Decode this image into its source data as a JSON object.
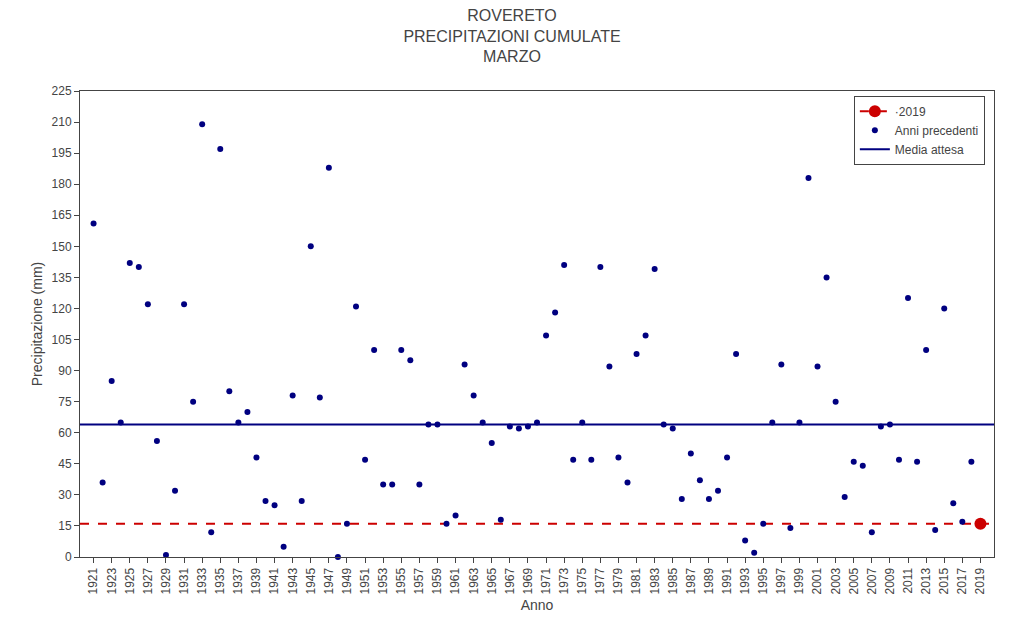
{
  "chart_data": {
    "type": "scatter",
    "title": "ROVERETO\nPRECIPITAZIONI CUMULATE\nMARZO",
    "xlabel": "Anno",
    "ylabel": "Precipitazione (mm)",
    "xlim": [
      1919.5,
      2020.5
    ],
    "xticks": [
      1921,
      1923,
      1925,
      1927,
      1929,
      1931,
      1933,
      1935,
      1937,
      1939,
      1941,
      1943,
      1945,
      1947,
      1949,
      1951,
      1953,
      1955,
      1957,
      1959,
      1961,
      1963,
      1965,
      1967,
      1969,
      1971,
      1973,
      1975,
      1977,
      1979,
      1981,
      1983,
      1985,
      1987,
      1989,
      1991,
      1993,
      1995,
      1997,
      1999,
      2001,
      2003,
      2005,
      2007,
      2009,
      2011,
      2013,
      2015,
      2017,
      2019
    ],
    "ylim": [
      0,
      225
    ],
    "yticks": [
      0,
      15,
      30,
      45,
      60,
      75,
      90,
      105,
      120,
      135,
      150,
      165,
      180,
      195,
      210,
      225
    ],
    "grid": false,
    "legend": "upper right",
    "series": [
      {
        "name": "·2019",
        "type": "hline",
        "color": "#CC0000",
        "line_style": "dashed",
        "marker": "circle",
        "x": [
          2019
        ],
        "values": [
          16
        ]
      },
      {
        "name": "Anni precedenti",
        "type": "scatter",
        "color": "#000080",
        "marker": "circle",
        "x": [
          1921,
          1922,
          1923,
          1924,
          1925,
          1926,
          1927,
          1928,
          1929,
          1930,
          1931,
          1932,
          1933,
          1934,
          1935,
          1936,
          1937,
          1938,
          1939,
          1940,
          1941,
          1942,
          1943,
          1944,
          1945,
          1946,
          1947,
          1948,
          1949,
          1950,
          1951,
          1952,
          1953,
          1954,
          1955,
          1956,
          1957,
          1958,
          1959,
          1960,
          1961,
          1962,
          1963,
          1964,
          1965,
          1966,
          1967,
          1968,
          1969,
          1970,
          1971,
          1972,
          1973,
          1974,
          1975,
          1976,
          1977,
          1978,
          1979,
          1980,
          1981,
          1982,
          1983,
          1984,
          1985,
          1986,
          1987,
          1988,
          1989,
          1990,
          1991,
          1992,
          1993,
          1994,
          1995,
          1996,
          1997,
          1998,
          1999,
          2000,
          2001,
          2002,
          2003,
          2004,
          2005,
          2006,
          2007,
          2008,
          2009,
          2010,
          2011,
          2012,
          2013,
          2014,
          2015,
          2016,
          2017,
          2018
        ],
        "values": [
          161,
          36,
          85,
          65,
          142,
          140,
          122,
          56,
          1,
          32,
          122,
          75,
          209,
          12,
          197,
          80,
          65,
          70,
          48,
          27,
          25,
          5,
          78,
          27,
          150,
          77,
          188,
          0,
          16,
          121,
          47,
          100,
          35,
          35,
          100,
          95,
          35,
          64,
          64,
          16,
          20,
          93,
          78,
          65,
          55,
          18,
          63,
          62,
          63,
          65,
          107,
          118,
          141,
          47,
          65,
          47,
          140,
          92,
          48,
          36,
          98,
          107,
          139,
          64,
          62,
          28,
          50,
          37,
          28,
          32,
          48,
          98,
          8,
          2,
          16,
          65,
          93,
          14,
          65,
          183,
          92,
          135,
          75,
          29,
          46,
          44,
          12,
          63,
          64,
          47,
          125,
          46,
          100,
          13,
          120,
          26,
          17,
          46
        ]
      },
      {
        "name": "Media attesa",
        "type": "hline",
        "color": "#000080",
        "line_style": "solid",
        "values": [
          64
        ]
      }
    ]
  }
}
